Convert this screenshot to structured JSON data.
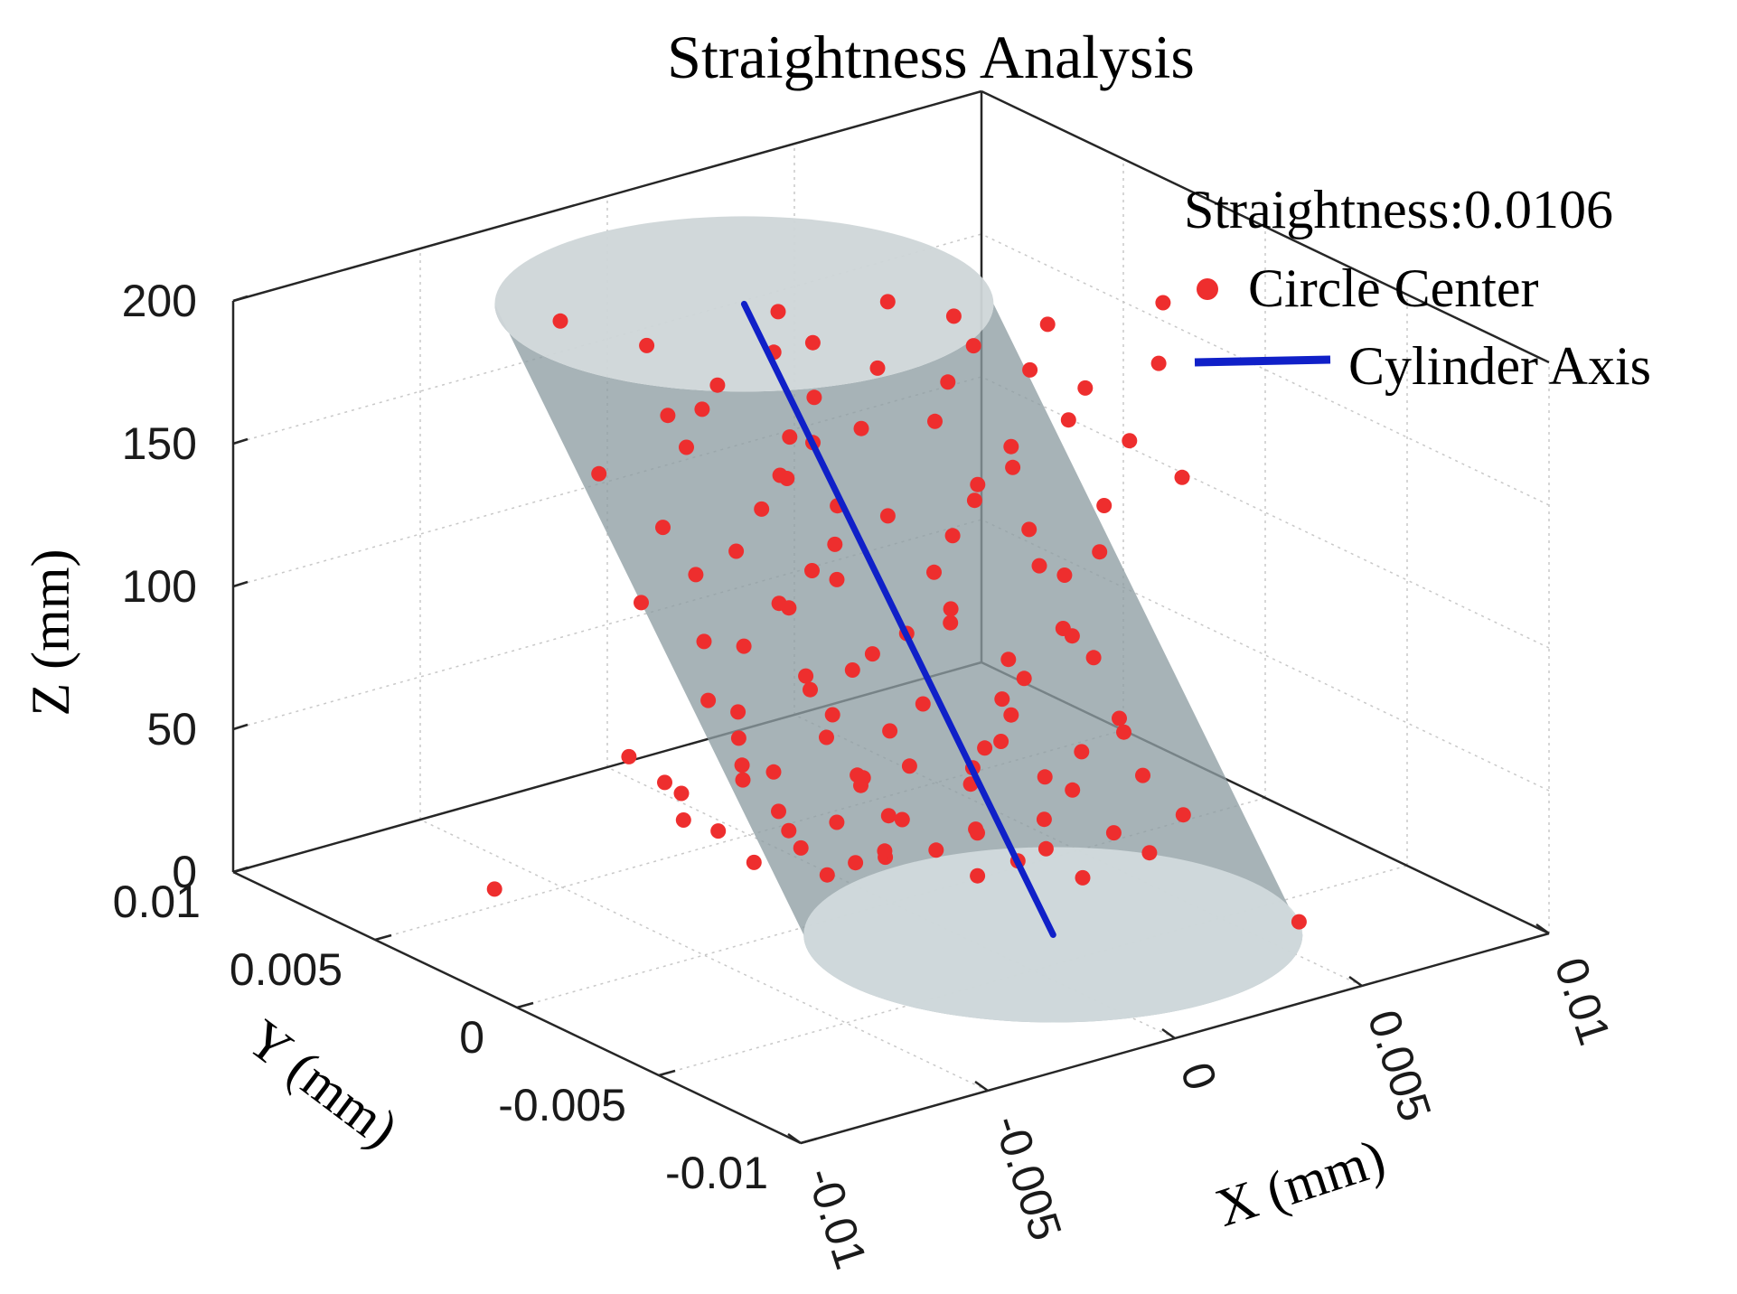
{
  "chart_data": {
    "type": "scatter",
    "projection": "3d",
    "title": "Straightness Analysis",
    "annotation": "Straightness:0.0106",
    "xlabel": "X (mm)",
    "ylabel": "Y (mm)",
    "zlabel": "Z (mm)",
    "xlim": [
      -0.01,
      0.01
    ],
    "ylim": [
      -0.01,
      0.01
    ],
    "zlim": [
      0,
      200
    ],
    "x_ticks": [
      "-0.01",
      "-0.005",
      "0",
      "0.005",
      "0.01"
    ],
    "y_ticks": [
      "-0.01",
      "-0.005",
      "0",
      "0.005",
      "0.01"
    ],
    "z_ticks": [
      "0",
      "50",
      "100",
      "150",
      "200"
    ],
    "grid": true,
    "legend_position": "top-right",
    "series": [
      {
        "name": "Circle Center",
        "type": "scatter",
        "color": "#ee2e2e",
        "points": [
          [
            -0.0062,
            0.0058,
            0
          ],
          [
            0.0062,
            -0.0062,
            0
          ],
          [
            0.0033,
            -0.0024,
            8
          ],
          [
            -0.0011,
            0.0008,
            10
          ],
          [
            0.0014,
            -0.0012,
            10
          ],
          [
            0.0003,
            0.0006,
            12
          ],
          [
            -0.0023,
            0.0018,
            14
          ],
          [
            0.0021,
            -0.0017,
            15
          ],
          [
            -0.0008,
            0.0002,
            16
          ],
          [
            0.0009,
            -0.0004,
            17
          ],
          [
            0.0027,
            -0.0019,
            18
          ],
          [
            -0.0015,
            0.0012,
            19
          ],
          [
            0.0041,
            -0.0037,
            20
          ],
          [
            -0.0004,
            -0.0003,
            21
          ],
          [
            0.0017,
            -0.0008,
            22
          ],
          [
            -0.0028,
            0.0024,
            24
          ],
          [
            0.0006,
            0.0004,
            25
          ],
          [
            0.0036,
            -0.0031,
            26
          ],
          [
            -0.0019,
            0.0011,
            27
          ],
          [
            0.0012,
            -0.0014,
            28
          ],
          [
            -0.0035,
            0.0027,
            29
          ],
          [
            0.0025,
            -0.0021,
            30
          ],
          [
            -0.0013,
            0.0002,
            32
          ],
          [
            0.0047,
            -0.0041,
            33
          ],
          [
            -0.0031,
            0.0033,
            34
          ],
          [
            0.0001,
            0.0012,
            35
          ],
          [
            0.0019,
            -0.0003,
            36
          ],
          [
            -0.0024,
            0.0008,
            37
          ],
          [
            0.0032,
            -0.0012,
            38
          ],
          [
            -0.0009,
            -0.0011,
            39
          ],
          [
            0.0011,
            0.0008,
            40
          ],
          [
            -0.0037,
            0.0031,
            41
          ],
          [
            0.0028,
            -0.0027,
            42
          ],
          [
            -0.0017,
            0.0019,
            43
          ],
          [
            0.0043,
            -0.0032,
            44
          ],
          [
            -0.0006,
            0.0004,
            45
          ],
          [
            0.0015,
            -0.0009,
            46
          ],
          [
            -0.0029,
            0.0014,
            47
          ],
          [
            0.0022,
            -0.0004,
            48
          ],
          [
            -0.0042,
            0.0037,
            49
          ],
          [
            0.0035,
            -0.0021,
            50
          ],
          [
            -0.0012,
            -0.0006,
            51
          ],
          [
            0.0008,
            0.0011,
            52
          ],
          [
            -0.0021,
            0.0026,
            53
          ],
          [
            0.0044,
            -0.0024,
            55
          ],
          [
            -0.0033,
            0.0009,
            56
          ],
          [
            0.0018,
            -0.0015,
            57
          ],
          [
            -0.0002,
            0.0018,
            58
          ],
          [
            0.0026,
            -0.0008,
            60
          ],
          [
            -0.0015,
            0.0003,
            62
          ],
          [
            0.0039,
            -0.0029,
            64
          ],
          [
            -0.0025,
            0.0021,
            66
          ],
          [
            0.0007,
            -0.0002,
            68
          ],
          [
            0.0031,
            -0.0006,
            70
          ],
          [
            -0.0011,
            0.0014,
            72
          ],
          [
            0.0016,
            -0.0018,
            74
          ],
          [
            -0.0036,
            0.0017,
            76
          ],
          [
            0.0042,
            -0.0016,
            78
          ],
          [
            -0.0005,
            0.0007,
            80
          ],
          [
            0.0023,
            -0.0011,
            82
          ],
          [
            -0.0019,
            0.0005,
            84
          ],
          [
            0.0011,
            0.0009,
            86
          ],
          [
            -0.0028,
            0.0029,
            88
          ],
          [
            0.0034,
            -0.0019,
            90
          ],
          [
            -0.0008,
            -0.0004,
            92
          ],
          [
            0.0019,
            0.0004,
            94
          ],
          [
            -0.0031,
            0.0011,
            96
          ],
          [
            0.0027,
            -0.0025,
            98
          ],
          [
            -0.0014,
            0.0021,
            100
          ],
          [
            0.0006,
            -0.0013,
            102
          ],
          [
            -0.0041,
            0.0034,
            104
          ],
          [
            0.0038,
            -0.0011,
            106
          ],
          [
            -0.0022,
            0.0007,
            108
          ],
          [
            0.0013,
            0.0002,
            110
          ],
          [
            -0.0009,
            0.0016,
            112
          ],
          [
            0.0029,
            -0.0014,
            114
          ],
          [
            -0.0034,
            0.0024,
            116
          ],
          [
            0.0021,
            0.0006,
            118
          ],
          [
            -0.0016,
            -0.0002,
            120
          ],
          [
            0.0036,
            -0.0026,
            122
          ],
          [
            -0.0027,
            0.0019,
            124
          ],
          [
            0.0009,
            0.0013,
            126
          ],
          [
            -0.0012,
            0.0004,
            128
          ],
          [
            0.0024,
            -0.0017,
            130
          ],
          [
            -0.0039,
            0.0029,
            132
          ],
          [
            0.0041,
            -0.0021,
            134
          ],
          [
            -0.0006,
            0.0011,
            136
          ],
          [
            0.0017,
            -0.0007,
            138
          ],
          [
            -0.0024,
            0.0014,
            140
          ],
          [
            0.0031,
            -0.0002,
            142
          ],
          [
            -0.0013,
            0.0022,
            144
          ],
          [
            0.0052,
            -0.0034,
            146
          ],
          [
            -0.0047,
            0.0041,
            148
          ],
          [
            0.0011,
            -0.0016,
            150
          ],
          [
            -0.0021,
            0.0009,
            152
          ],
          [
            0.0026,
            -0.0008,
            154
          ],
          [
            -0.0008,
            0.0017,
            156
          ],
          [
            0.0044,
            -0.0026,
            158
          ],
          [
            -0.0035,
            0.0026,
            160
          ],
          [
            0.0014,
            0.0003,
            162
          ],
          [
            -0.0018,
            0.0012,
            164
          ],
          [
            0.0033,
            -0.0019,
            166
          ],
          [
            -0.0027,
            0.0031,
            168
          ],
          [
            0.0022,
            0.0009,
            170
          ],
          [
            -0.0011,
            -0.0004,
            172
          ],
          [
            0.0039,
            -0.0017,
            174
          ],
          [
            -0.0043,
            0.0022,
            176
          ],
          [
            0.0007,
            0.0014,
            178
          ],
          [
            -0.0016,
            0.0006,
            180
          ],
          [
            0.0028,
            -0.0012,
            182
          ],
          [
            -0.0032,
            0.0019,
            184
          ],
          [
            0.0048,
            -0.0031,
            186
          ],
          [
            -0.0005,
            0.0021,
            188
          ],
          [
            0.0019,
            -0.0004,
            190
          ],
          [
            -0.0038,
            0.0036,
            192
          ],
          [
            0.0035,
            -0.0009,
            194
          ],
          [
            -0.0023,
            0.0011,
            196
          ],
          [
            0.0012,
            0.0017,
            198
          ],
          [
            -0.0052,
            0.0048,
            200
          ],
          [
            0.0056,
            -0.0022,
            200
          ],
          [
            0.0016,
            -0.0001,
            200
          ],
          [
            -0.0012,
            0.0024,
            200
          ]
        ]
      },
      {
        "name": "Cylinder Axis",
        "type": "line",
        "color": "#1020c8",
        "points": [
          [
            0.0016,
            -0.0036,
            0
          ],
          [
            -0.0015,
            0.0032,
            200
          ]
        ]
      }
    ],
    "cylinder": {
      "z_range": [
        0,
        200
      ],
      "bottom_center": [
        0.0016,
        -0.0036
      ],
      "top_center": [
        -0.0015,
        0.0032
      ],
      "color": "#8e9ea3"
    }
  }
}
